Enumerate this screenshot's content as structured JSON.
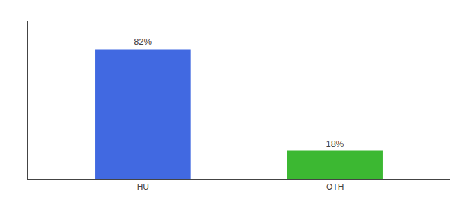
{
  "chart_data": {
    "type": "bar",
    "categories": [
      "HU",
      "OTH"
    ],
    "values": [
      82,
      18
    ],
    "value_labels": [
      "82%",
      "18%"
    ],
    "colors": [
      "#4169E1",
      "#3CB832"
    ],
    "ylim": [
      0,
      100
    ],
    "yticks": [],
    "grid": false,
    "tick_labels": "x",
    "data_labels": true
  }
}
